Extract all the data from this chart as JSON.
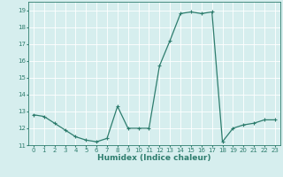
{
  "xlabel": "Humidex (Indice chaleur)",
  "x_values": [
    0,
    1,
    2,
    3,
    4,
    5,
    6,
    7,
    8,
    9,
    10,
    11,
    12,
    13,
    14,
    15,
    16,
    17,
    18,
    19,
    20,
    21,
    22,
    23
  ],
  "y_values": [
    12.8,
    12.7,
    12.3,
    11.9,
    11.5,
    11.3,
    11.2,
    11.4,
    13.3,
    12.0,
    12.0,
    12.0,
    15.7,
    17.2,
    18.8,
    18.9,
    18.8,
    18.9,
    11.2,
    12.0,
    12.2,
    12.3,
    12.5,
    12.5
  ],
  "line_color": "#2e7d6e",
  "bg_color": "#d6eeee",
  "grid_color": "#ffffff",
  "ylim": [
    11,
    19.5
  ],
  "xlim": [
    -0.5,
    23.5
  ],
  "yticks": [
    11,
    12,
    13,
    14,
    15,
    16,
    17,
    18,
    19
  ],
  "xticks": [
    0,
    1,
    2,
    3,
    4,
    5,
    6,
    7,
    8,
    9,
    10,
    11,
    12,
    13,
    14,
    15,
    16,
    17,
    18,
    19,
    20,
    21,
    22,
    23
  ],
  "marker": "+",
  "markersize": 3.5,
  "linewidth": 0.9,
  "tick_fontsize": 5.0,
  "xlabel_fontsize": 6.5,
  "xlabel_fontweight": "bold"
}
